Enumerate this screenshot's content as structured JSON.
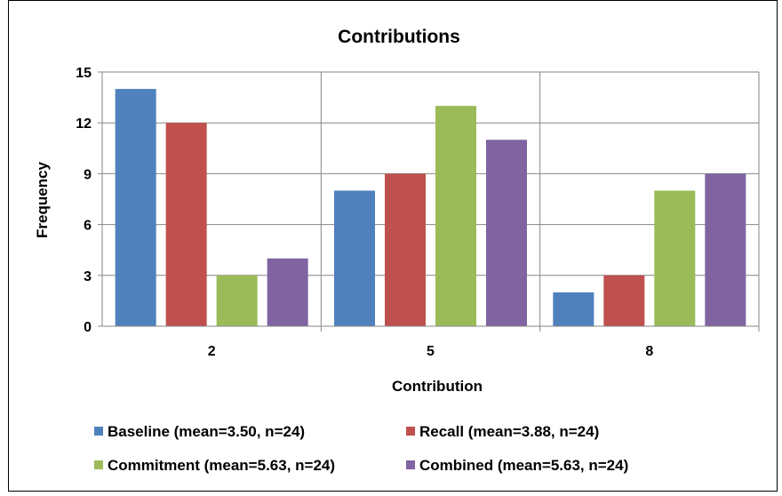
{
  "chart_data": {
    "type": "bar",
    "title": "Contributions",
    "xlabel": "Contribution",
    "ylabel": "Frequency",
    "categories": [
      "2",
      "5",
      "8"
    ],
    "ylim": [
      0,
      15
    ],
    "yticks": [
      0,
      3,
      6,
      9,
      12,
      15
    ],
    "grid": true,
    "legend_position": "bottom",
    "series": [
      {
        "name": "Baseline (mean=3.50, n=24)",
        "color": "#4f81bd",
        "values": [
          14,
          8,
          2
        ]
      },
      {
        "name": "Recall (mean=3.88, n=24)",
        "color": "#c0504d",
        "values": [
          12,
          9,
          3
        ]
      },
      {
        "name": "Commitment (mean=5.63, n=24)",
        "color": "#9bbb59",
        "values": [
          3,
          13,
          8
        ]
      },
      {
        "name": "Combined (mean=5.63, n=24)",
        "color": "#8064a2",
        "values": [
          4,
          11,
          9
        ]
      }
    ]
  }
}
